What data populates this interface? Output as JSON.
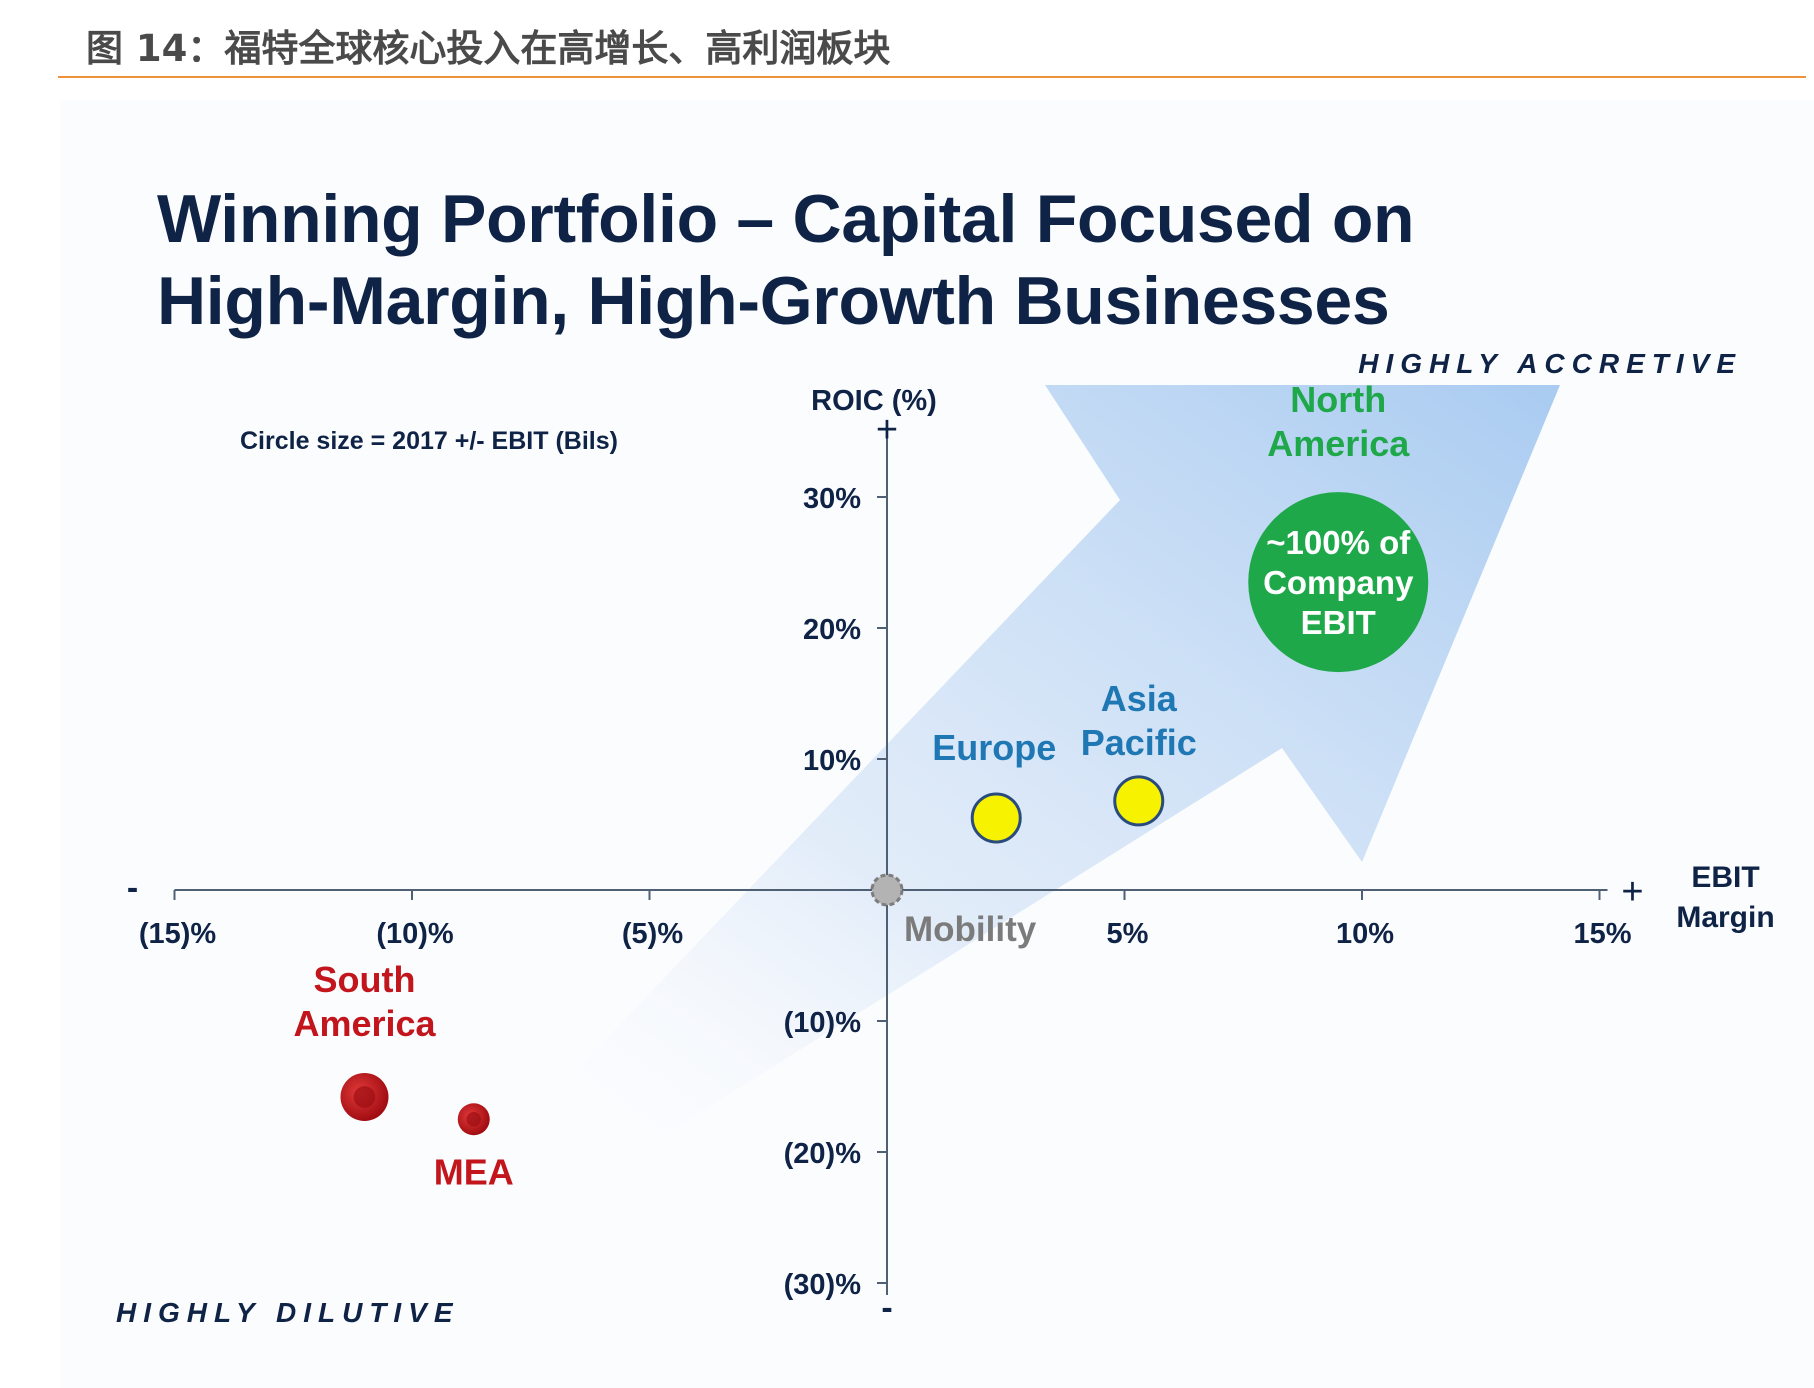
{
  "caption": "图 14：福特全球核心投入在高增长、高利润板块",
  "slide_title_line1": "Winning Portfolio – Capital Focused on",
  "slide_title_line2": "High-Margin, High-Growth Businesses",
  "colors": {
    "navy": "#0f2346",
    "green": "#1ea84a",
    "red": "#c2151c",
    "blue": "#1f78b4",
    "yellow": "#f7f200",
    "caption_rule": "#f0923a"
  },
  "chart_data": {
    "type": "scatter",
    "xlabel": "EBIT Margin",
    "xlabel_lines": [
      "EBIT",
      "Margin"
    ],
    "ylabel": "ROIC (%)",
    "xlim": [
      -15,
      15
    ],
    "ylim": [
      -30,
      30
    ],
    "x_ticks": [
      {
        "value": -15,
        "label": "(15)%"
      },
      {
        "value": -10,
        "label": "(10)%"
      },
      {
        "value": -5,
        "label": "(5)%"
      },
      {
        "value": 5,
        "label": "5%"
      },
      {
        "value": 10,
        "label": "10%"
      },
      {
        "value": 15,
        "label": "15%"
      }
    ],
    "y_ticks": [
      {
        "value": 30,
        "label": "30%"
      },
      {
        "value": 20,
        "label": "20%"
      },
      {
        "value": 10,
        "label": "10%"
      },
      {
        "value": -10,
        "label": "(10)%"
      },
      {
        "value": -20,
        "label": "(20)%"
      },
      {
        "value": -30,
        "label": "(30)%"
      }
    ],
    "axis_signs": {
      "x_minus": "-",
      "x_plus": "+",
      "y_plus": "+",
      "y_minus": "-"
    },
    "size_note": "Circle size = 2017 +/- EBIT (Bils)",
    "corner_labels": {
      "top_right": "HIGHLY ACCRETIVE",
      "bottom_left": "HIGHLY DILUTIVE"
    },
    "origin_label": "Mobility",
    "points": [
      {
        "name": "North America",
        "label_lines": [
          "North",
          "America"
        ],
        "x": 9.5,
        "y": 23.5,
        "color": "#1ea84a",
        "size": "large",
        "bubble_text": [
          "~100% of",
          "Company",
          "EBIT"
        ]
      },
      {
        "name": "Europe",
        "label_lines": [
          "Europe"
        ],
        "x": 2.3,
        "y": 5.5,
        "color": "#f7f200",
        "size": "small"
      },
      {
        "name": "Asia Pacific",
        "label_lines": [
          "Asia",
          "Pacific"
        ],
        "x": 5.3,
        "y": 6.8,
        "color": "#f7f200",
        "size": "small"
      },
      {
        "name": "South America",
        "label_lines": [
          "South",
          "America"
        ],
        "x": -11.0,
        "y": -15.8,
        "color": "#c2151c",
        "size": "small"
      },
      {
        "name": "MEA",
        "label_lines": [
          "MEA"
        ],
        "x": -8.7,
        "y": -17.5,
        "color": "#c2151c",
        "size": "tiny"
      }
    ]
  }
}
